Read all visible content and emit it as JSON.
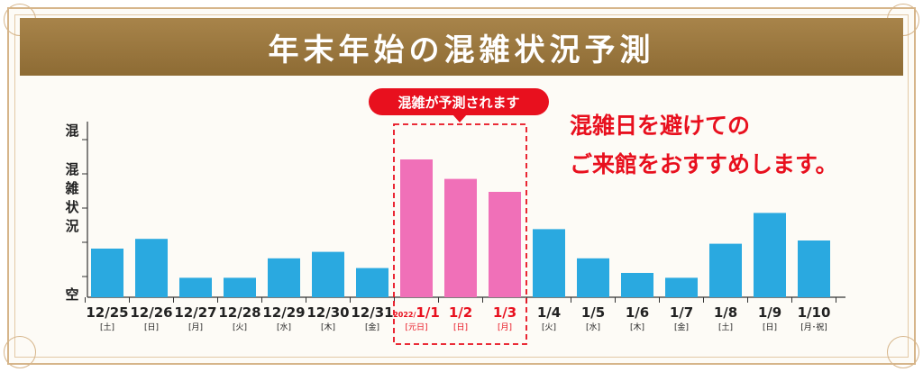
{
  "banner": {
    "title": "年末年始の混雑状況予測"
  },
  "callout": {
    "label": "混雑が予測されます"
  },
  "note": {
    "line1": "混雑日を避けての",
    "line2": "ご来館をおすすめします。"
  },
  "colors": {
    "normal": "#2aa9e0",
    "peak": "#f070b8",
    "accent": "#e8101e",
    "banner": "#8d6b34"
  },
  "chart_data": {
    "type": "bar",
    "title": "年末年始の混雑状況予測",
    "ylabel": "混雑状況",
    "y_top_label": "混",
    "y_bottom_label": "空",
    "ylim": [
      0,
      100
    ],
    "categories": [
      "12/25",
      "12/26",
      "12/27",
      "12/28",
      "12/29",
      "12/30",
      "12/31",
      "1/1",
      "1/2",
      "1/3",
      "1/4",
      "1/5",
      "1/6",
      "1/7",
      "1/8",
      "1/9",
      "1/10"
    ],
    "weekdays": [
      "[土]",
      "[日]",
      "[月]",
      "[火]",
      "[水]",
      "[木]",
      "[金]",
      "[元日]",
      "[日]",
      "[月]",
      "[火]",
      "[水]",
      "[木]",
      "[金]",
      "[土]",
      "[日]",
      "[月･祝]"
    ],
    "year_prefix": {
      "index": 7,
      "text": "2022/"
    },
    "values": [
      30,
      36,
      12,
      12,
      24,
      28,
      18,
      85,
      73,
      65,
      42,
      24,
      15,
      12,
      33,
      52,
      35
    ],
    "highlight": [
      7,
      8,
      9
    ]
  }
}
